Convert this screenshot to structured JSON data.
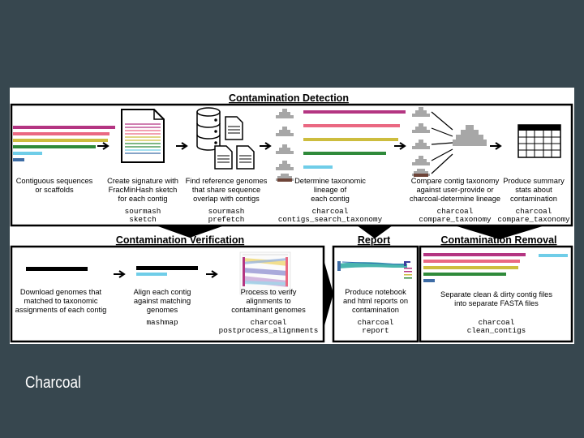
{
  "slide": {
    "title": "Charcoal"
  },
  "colors": {
    "background": "#37474f",
    "magenta": "#b43582",
    "pink": "#ea6882",
    "yellow": "#cdbd3e",
    "green": "#2f8a3a",
    "cyan": "#6fcde8",
    "blue": "#3d6ca5",
    "brown": "#6e4438",
    "grey": "#a7a7a7"
  },
  "detection": {
    "header": "Contamination Detection",
    "steps": [
      {
        "caption": [
          "Contiguous sequences",
          "or scaffolds"
        ],
        "code": []
      },
      {
        "caption": [
          "Create signature with",
          "FracMinHash sketch",
          "for each contig"
        ],
        "code": [
          "sourmash",
          "sketch"
        ]
      },
      {
        "caption": [
          "Find reference genomes",
          "that share sequence",
          "overlap with contigs"
        ],
        "code": [
          "sourmash",
          "prefetch"
        ]
      },
      {
        "caption": [
          "Determine taxonomic",
          "lineage of",
          "each contig"
        ],
        "code": [
          "charcoal",
          "contigs_search_taxonomy"
        ]
      },
      {
        "caption": [
          "Compare contig taxonomy",
          "against user-provide or",
          "charcoal-determine lineage"
        ],
        "code": [
          "charcoal",
          "compare_taxonomy"
        ]
      },
      {
        "caption": [
          "Produce summary",
          "stats about",
          "contamination"
        ],
        "code": [
          "charcoal",
          "compare_taxonomy"
        ]
      }
    ]
  },
  "verification": {
    "header": "Contamination Verification",
    "steps": [
      {
        "caption": [
          "Download genomes that",
          "matched to taxonomic",
          "assignments of each contig"
        ],
        "code": []
      },
      {
        "caption": [
          "Align each contig",
          "against matching",
          "genomes"
        ],
        "code": [
          "mashmap"
        ]
      },
      {
        "caption": [
          "Process to verify",
          "alignments to",
          "contaminant genomes"
        ],
        "code": [
          "charcoal",
          "postprocess_alignments"
        ]
      }
    ]
  },
  "report": {
    "header": "Report",
    "caption": [
      "Produce notebook",
      "and html reports on",
      "contamination"
    ],
    "code": [
      "charcoal",
      "report"
    ]
  },
  "removal": {
    "header": "Contamination Removal",
    "caption": [
      "Separate clean & dirty contig files",
      "into separate FASTA files"
    ],
    "code": [
      "charcoal",
      "clean_contigs"
    ]
  }
}
